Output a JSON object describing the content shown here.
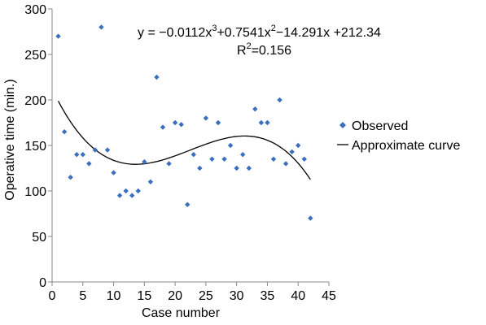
{
  "chart_data": {
    "type": "scatter",
    "title": "",
    "xlabel": "Case number",
    "ylabel": "Operative time (min.)",
    "xlim": [
      0,
      45
    ],
    "ylim": [
      0,
      300
    ],
    "x_ticks": [
      "0",
      "5",
      "10",
      "15",
      "20",
      "25",
      "30",
      "35",
      "40",
      "45"
    ],
    "y_ticks": [
      "0",
      "50",
      "100",
      "150",
      "200",
      "250",
      "300"
    ],
    "grid": false,
    "legend_position": "right",
    "colors": {
      "observed": "#3a6fbf",
      "curve": "#000000"
    },
    "series": [
      {
        "name": "Observed",
        "type": "scatter",
        "marker": "diamond",
        "points": [
          [
            1,
            270
          ],
          [
            2,
            165
          ],
          [
            3,
            115
          ],
          [
            4,
            140
          ],
          [
            5,
            140
          ],
          [
            6,
            130
          ],
          [
            7,
            145
          ],
          [
            8,
            280
          ],
          [
            9,
            145
          ],
          [
            10,
            120
          ],
          [
            11,
            95
          ],
          [
            12,
            100
          ],
          [
            13,
            95
          ],
          [
            14,
            100
          ],
          [
            15,
            132
          ],
          [
            16,
            110
          ],
          [
            17,
            225
          ],
          [
            18,
            170
          ],
          [
            19,
            130
          ],
          [
            20,
            175
          ],
          [
            21,
            173
          ],
          [
            22,
            85
          ],
          [
            23,
            140
          ],
          [
            24,
            125
          ],
          [
            25,
            180
          ],
          [
            26,
            135
          ],
          [
            27,
            175
          ],
          [
            28,
            135
          ],
          [
            29,
            150
          ],
          [
            30,
            125
          ],
          [
            31,
            140
          ],
          [
            32,
            125
          ],
          [
            33,
            190
          ],
          [
            34,
            175
          ],
          [
            35,
            175
          ],
          [
            36,
            135
          ],
          [
            37,
            200
          ],
          [
            38,
            130
          ],
          [
            39,
            143
          ],
          [
            40,
            150
          ],
          [
            41,
            135
          ],
          [
            42,
            70
          ]
        ]
      },
      {
        "name": "Approximate curve",
        "type": "line",
        "polynomial": {
          "a3": -0.0112,
          "a2": 0.7541,
          "a1": -14.291,
          "a0": 212.34
        },
        "x_range": [
          1,
          42
        ]
      }
    ],
    "annotations": {
      "eq_main": "y = −0.0112x",
      "eq_exp1": "3",
      "eq_mid": "+0.7541x",
      "eq_exp2": "2",
      "eq_end": "−14.291x +212.34",
      "r2_base": "R",
      "r2_exp": "2",
      "r2_value": "=0.156"
    }
  }
}
